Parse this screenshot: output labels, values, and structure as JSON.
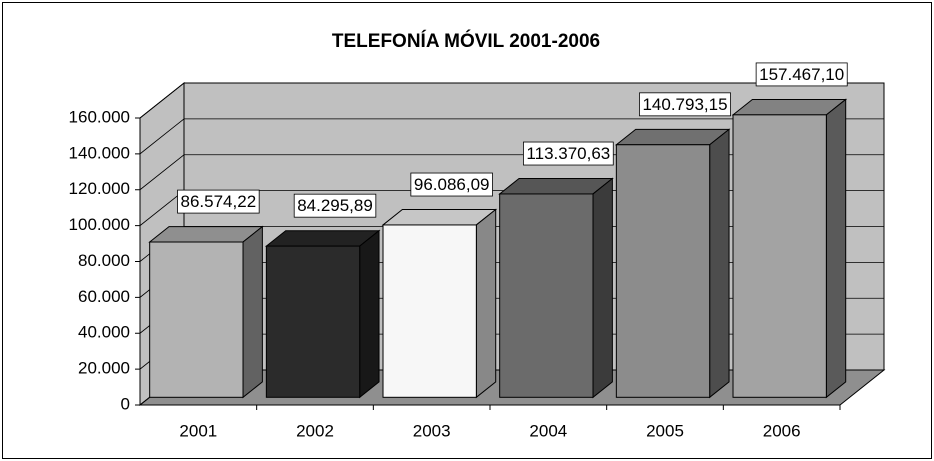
{
  "chart_data": {
    "type": "bar3d",
    "title": "TELEFONÍA MÓVIL 2001-2006",
    "categories": [
      "2001",
      "2002",
      "2003",
      "2004",
      "2005",
      "2006"
    ],
    "values": [
      86574.22,
      84295.89,
      96086.09,
      113370.63,
      140793.15,
      157467.1
    ],
    "value_labels": [
      "86.574,22",
      "84.295,89",
      "96.086,09",
      "113.370,63",
      "140.793,15",
      "157.467,10"
    ],
    "colors": [
      "#b3b3b3",
      "#2b2b2b",
      "#f7f7f7",
      "#6b6b6b",
      "#8c8c8c",
      "#a3a3a3"
    ],
    "ylim": [
      0,
      160000
    ],
    "yticks": [
      0,
      {
        "value": 20000,
        "label": "20.000"
      },
      {
        "value": 40000,
        "label": "40.000"
      },
      {
        "value": 60000,
        "label": "60.000"
      },
      {
        "value": 80000,
        "label": "80.000"
      },
      {
        "value": 100000,
        "label": "100.000"
      },
      {
        "value": 120000,
        "label": "120.000"
      },
      {
        "value": 140000,
        "label": "140.000"
      },
      {
        "value": 160000,
        "label": "160.000"
      }
    ],
    "grid": true
  }
}
